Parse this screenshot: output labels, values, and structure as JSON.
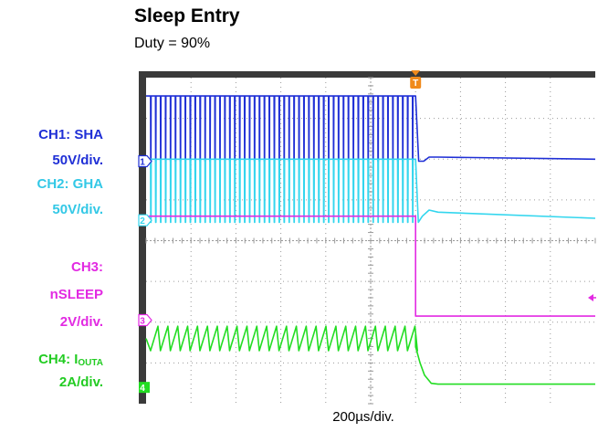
{
  "header": {
    "title": "Sleep Entry",
    "subtitle": "Duty = 90%"
  },
  "channel_labels": {
    "ch1_name": "CH1: SHA",
    "ch1_scale": "50V/div.",
    "ch2_name": "CH2: GHA",
    "ch2_scale": "50V/div.",
    "ch3_name": "CH3:",
    "ch3_signal": "nSLEEP",
    "ch3_scale": "2V/div.",
    "ch4_name_prefix": "CH4: I",
    "ch4_name_sub": "OUTA",
    "ch4_scale": "2A/div."
  },
  "footer": {
    "timebase": "200µs/div."
  },
  "colors": {
    "ch1": "#1f2fd6",
    "ch2": "#33d6ee",
    "ch3": "#e22ae2",
    "ch4": "#22dd22",
    "trigger": "#f08a1c",
    "grid": "#9a9a9a",
    "frame": "#000000"
  },
  "chart_data": {
    "type": "line",
    "title": "Sleep Entry",
    "subtitle": "Duty = 90%",
    "xlabel": "200µs/div.",
    "x_unit": "div",
    "xlim": [
      0,
      10
    ],
    "ylim": [
      -4,
      4
    ],
    "grid": true,
    "trigger": {
      "marker": "T",
      "x": 6.0
    },
    "series": [
      {
        "name": "CH1: SHA",
        "marker": "1",
        "ground_div": 1.95,
        "scale": "50V/div.",
        "x": [
          0,
          6.0,
          6.07,
          6.18,
          6.3,
          6.5,
          10
        ],
        "y": [
          3.55,
          3.55,
          1.95,
          1.95,
          2.05,
          2.05,
          2.0
        ],
        "pwm": {
          "x_start": 0.1,
          "x_end": 6.0,
          "period_div": 0.11,
          "low_fraction": 0.1,
          "high": 3.55,
          "low": 1.95
        }
      },
      {
        "name": "CH2: GHA",
        "marker": "2",
        "ground_div": 0.5,
        "scale": "50V/div.",
        "x": [
          0,
          6.0,
          6.06,
          6.15,
          6.3,
          6.5,
          10
        ],
        "y": [
          2.0,
          2.0,
          0.45,
          0.6,
          0.75,
          0.7,
          0.55
        ],
        "pwm": {
          "x_start": 0.1,
          "x_end": 6.0,
          "period_div": 0.11,
          "low_fraction": 0.12,
          "high": 2.0,
          "low": 0.45
        }
      },
      {
        "name": "CH3: nSLEEP",
        "marker": "3",
        "ground_div": -1.95,
        "scale": "2V/div.",
        "x": [
          0,
          6.0,
          6.0,
          10
        ],
        "y": [
          0.6,
          0.6,
          -1.85,
          -1.85
        ]
      },
      {
        "name": "CH4: IOUTA",
        "marker": "4",
        "ground_div": -3.6,
        "scale": "2A/div.",
        "x": [
          0,
          6.0,
          6.0,
          6.1,
          6.2,
          6.35,
          6.5,
          10
        ],
        "y": [
          -2.3,
          -2.3,
          -2.6,
          -3.0,
          -3.3,
          -3.5,
          -3.52,
          -3.52
        ],
        "ripple": {
          "x_start": 0.1,
          "x_end": 6.0,
          "period_div": 0.22,
          "min": -2.7,
          "max": -2.1
        }
      }
    ]
  }
}
